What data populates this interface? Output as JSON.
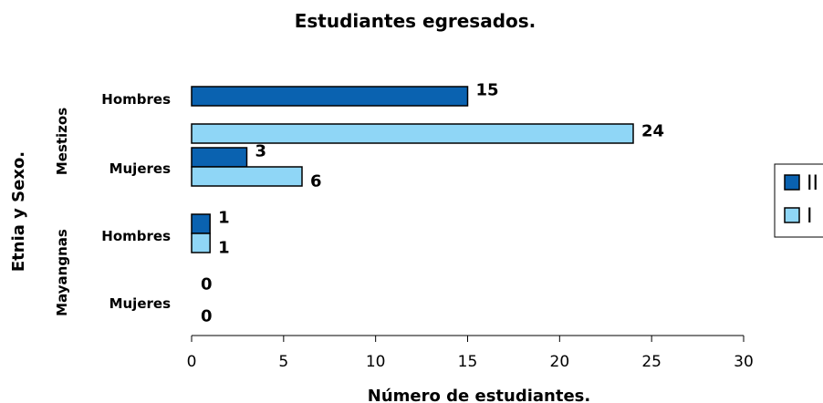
{
  "chart_data": {
    "type": "bar",
    "orientation": "horizontal",
    "title": "Estudiantes egresados.",
    "xlabel": "Número de estudiantes.",
    "ylabel": "Etnia y Sexo.",
    "xlim": [
      0,
      30
    ],
    "xticks": [
      0,
      5,
      10,
      15,
      20,
      25,
      30
    ],
    "grid": false,
    "legend_position": "right",
    "groups": [
      {
        "name": "Mestizos",
        "categories": [
          "Hombres",
          "Mujeres"
        ]
      },
      {
        "name": "Mayangnas",
        "categories": [
          "Hombres",
          "Mujeres"
        ]
      }
    ],
    "series": [
      {
        "name": "II",
        "color": "#0a62b0",
        "values": [
          15,
          3,
          1,
          0
        ]
      },
      {
        "name": "I",
        "color": "#8fd6f6",
        "values": [
          24,
          6,
          1,
          0
        ]
      }
    ]
  }
}
